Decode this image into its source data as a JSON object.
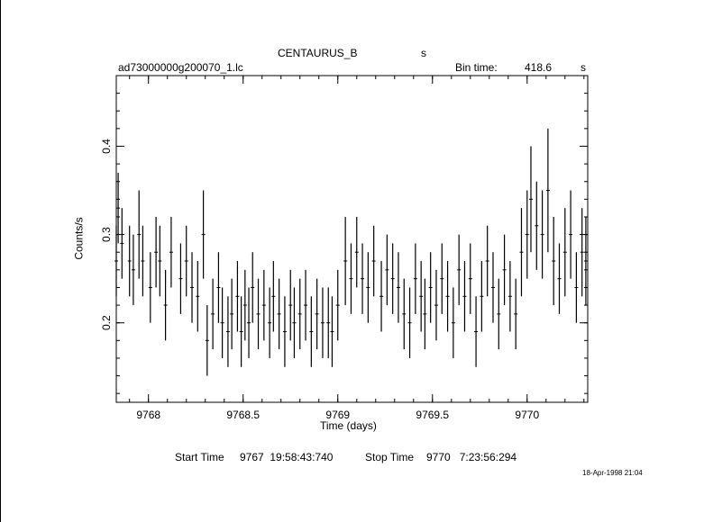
{
  "header": {
    "object": "CENTAURUS_B",
    "object_unit": "s",
    "file": "ad73000000g200070_1.lc",
    "bin_label": "Bin time:",
    "bin_value": "418.6",
    "bin_unit": "s"
  },
  "footer": {
    "start_label": "Start Time",
    "start_value": "9767  19:58:43:740",
    "stop_label": "Stop Time",
    "stop_value": "9770   7:23:56:294",
    "stamp": "18-Apr-1998 21:04"
  },
  "chart_data": {
    "type": "line",
    "xlabel": "Time (days)",
    "ylabel": "Counts/s",
    "xlim": [
      9767.83,
      9770.32
    ],
    "ylim": [
      0.11,
      0.48
    ],
    "xticks": [
      9768,
      9768.5,
      9769,
      9769.5,
      9770
    ],
    "xtick_labels": [
      "9768",
      "9768.5",
      "9769",
      "9769.5",
      "9770"
    ],
    "yticks": [
      0.2,
      0.3,
      0.4
    ],
    "ytick_labels": [
      "0.2",
      "0.3",
      "0.4"
    ],
    "grid": false,
    "series": [
      {
        "style": "error-bars",
        "x": [
          9767.83,
          9767.84,
          9767.86,
          9767.9,
          9767.92,
          9767.95,
          9767.97,
          9768.01,
          9768.04,
          9768.06,
          9768.09,
          9768.12,
          9768.17,
          9768.2,
          9768.23,
          9768.26,
          9768.29,
          9768.31,
          9768.34,
          9768.37,
          9768.39,
          9768.42,
          9768.44,
          9768.47,
          9768.49,
          9768.51,
          9768.53,
          9768.55,
          9768.58,
          9768.61,
          9768.64,
          9768.66,
          9768.69,
          9768.72,
          9768.75,
          9768.77,
          9768.8,
          9768.83,
          9768.86,
          9768.89,
          9768.92,
          9768.95,
          9768.97,
          9769.0,
          9769.04,
          9769.07,
          9769.1,
          9769.13,
          9769.16,
          9769.19,
          9769.23,
          9769.26,
          9769.29,
          9769.32,
          9769.35,
          9769.38,
          9769.41,
          9769.44,
          9769.46,
          9769.49,
          9769.52,
          9769.55,
          9769.58,
          9769.61,
          9769.64,
          9769.67,
          9769.7,
          9769.73,
          9769.76,
          9769.79,
          9769.82,
          9769.85,
          9769.88,
          9769.91,
          9769.94,
          9769.97,
          9770.0,
          9770.02,
          9770.05,
          9770.08,
          9770.11,
          9770.14,
          9770.17,
          9770.2,
          9770.23,
          9770.26,
          9770.29,
          9770.31
        ],
        "y": [
          0.27,
          0.33,
          0.29,
          0.27,
          0.26,
          0.3,
          0.27,
          0.24,
          0.28,
          0.27,
          0.22,
          0.28,
          0.25,
          0.27,
          0.24,
          0.23,
          0.3,
          0.18,
          0.21,
          0.24,
          0.2,
          0.19,
          0.21,
          0.23,
          0.19,
          0.22,
          0.2,
          0.24,
          0.21,
          0.22,
          0.2,
          0.23,
          0.21,
          0.19,
          0.22,
          0.2,
          0.21,
          0.22,
          0.19,
          0.21,
          0.2,
          0.2,
          0.19,
          0.22,
          0.27,
          0.25,
          0.28,
          0.25,
          0.24,
          0.27,
          0.23,
          0.26,
          0.25,
          0.24,
          0.21,
          0.2,
          0.25,
          0.23,
          0.21,
          0.24,
          0.22,
          0.25,
          0.23,
          0.2,
          0.26,
          0.23,
          0.25,
          0.19,
          0.23,
          0.27,
          0.24,
          0.21,
          0.26,
          0.23,
          0.21,
          0.28,
          0.3,
          0.34,
          0.31,
          0.3,
          0.35,
          0.27,
          0.25,
          0.28,
          0.3,
          0.24,
          0.28,
          0.27
        ],
        "err": [
          0.04,
          0.04,
          0.04,
          0.04,
          0.04,
          0.05,
          0.04,
          0.04,
          0.04,
          0.04,
          0.04,
          0.04,
          0.04,
          0.04,
          0.04,
          0.04,
          0.05,
          0.04,
          0.04,
          0.04,
          0.04,
          0.04,
          0.04,
          0.04,
          0.04,
          0.04,
          0.04,
          0.04,
          0.04,
          0.04,
          0.04,
          0.04,
          0.04,
          0.04,
          0.04,
          0.04,
          0.04,
          0.04,
          0.04,
          0.04,
          0.04,
          0.04,
          0.04,
          0.04,
          0.05,
          0.04,
          0.04,
          0.04,
          0.04,
          0.04,
          0.04,
          0.04,
          0.04,
          0.04,
          0.04,
          0.04,
          0.04,
          0.04,
          0.04,
          0.04,
          0.04,
          0.04,
          0.04,
          0.04,
          0.04,
          0.04,
          0.04,
          0.04,
          0.04,
          0.04,
          0.04,
          0.04,
          0.04,
          0.04,
          0.04,
          0.05,
          0.05,
          0.06,
          0.05,
          0.05,
          0.07,
          0.05,
          0.04,
          0.05,
          0.05,
          0.04,
          0.05,
          0.05
        ]
      }
    ]
  }
}
